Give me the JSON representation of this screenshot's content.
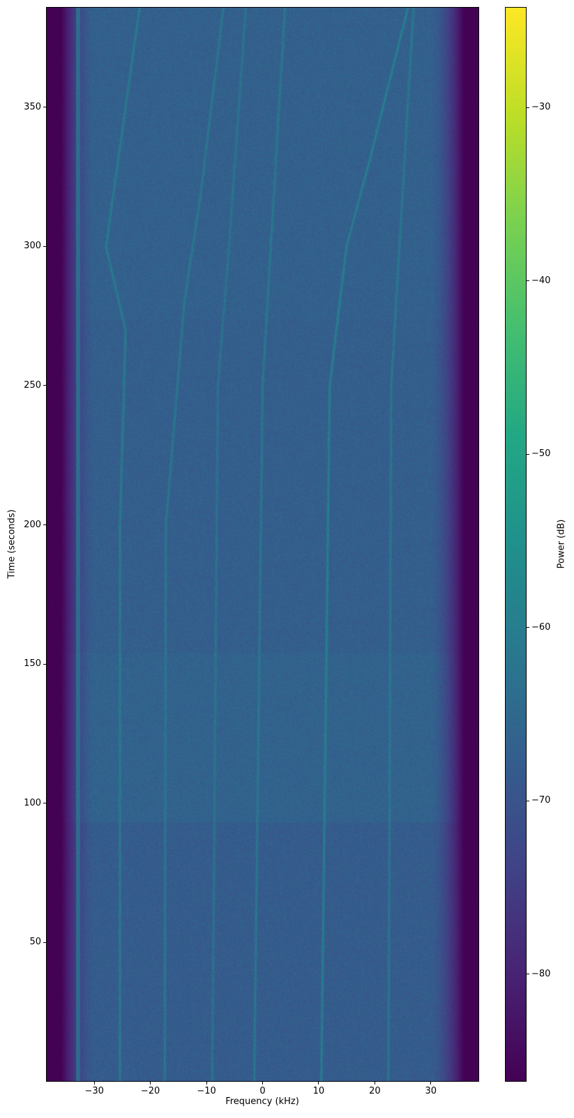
{
  "chart_data": {
    "type": "heatmap",
    "title": "",
    "xlabel": "Frequency (kHz)",
    "ylabel": "Time (seconds)",
    "colorbar_label": "Power (dB)",
    "colormap": "viridis",
    "xlim": [
      -38.6,
      38.6
    ],
    "ylim": [
      0,
      386
    ],
    "clim": [
      -86.2,
      -24.2
    ],
    "xticks": [
      -30,
      -20,
      -10,
      0,
      10,
      20,
      30
    ],
    "xtick_labels": [
      "−30",
      "−20",
      "−10",
      "0",
      "10",
      "20",
      "30"
    ],
    "yticks": [
      50,
      100,
      150,
      200,
      250,
      300,
      350
    ],
    "ytick_labels": [
      "50",
      "100",
      "150",
      "200",
      "250",
      "300",
      "350"
    ],
    "cticks": [
      -80,
      -70,
      -60,
      -50,
      -40,
      -30
    ],
    "ctick_labels": [
      "−80",
      "−70",
      "−60",
      "−50",
      "−40",
      "−30"
    ],
    "grid": false,
    "noise_floor_db": -86,
    "passband_khz": [
      -30,
      30
    ],
    "band_edge_khz": [
      -36,
      36
    ],
    "background_segments": [
      {
        "t": [
          0,
          93
        ],
        "db": -68
      },
      {
        "t": [
          93,
          154
        ],
        "db": -66.5
      },
      {
        "t": [
          154,
          274
        ],
        "db": -67.5
      },
      {
        "t": [
          274,
          386
        ],
        "db": -67
      }
    ],
    "signal_tracks": [
      {
        "db": -60,
        "points": [
          [
            0,
            -25.5
          ],
          [
            200,
            -25.5
          ],
          [
            270,
            -24.5
          ],
          [
            300,
            -28
          ],
          [
            386,
            -22
          ]
        ]
      },
      {
        "db": -61,
        "points": [
          [
            0,
            -17.5
          ],
          [
            200,
            -17.3
          ],
          [
            280,
            -14
          ],
          [
            320,
            -11
          ],
          [
            386,
            -7
          ]
        ]
      },
      {
        "db": -62,
        "points": [
          [
            0,
            -9
          ],
          [
            250,
            -8
          ],
          [
            300,
            -6
          ],
          [
            386,
            -3
          ]
        ]
      },
      {
        "db": -61,
        "points": [
          [
            0,
            -1.5
          ],
          [
            250,
            0
          ],
          [
            386,
            4
          ]
        ]
      },
      {
        "db": -59,
        "points": [
          [
            0,
            10.5
          ],
          [
            250,
            12
          ],
          [
            300,
            15
          ],
          [
            330,
            19
          ],
          [
            386,
            26
          ]
        ]
      },
      {
        "db": -61,
        "points": [
          [
            0,
            22.5
          ],
          [
            250,
            23
          ],
          [
            386,
            27
          ]
        ]
      },
      {
        "db": -63,
        "points": [
          [
            0,
            -33
          ],
          [
            386,
            -33
          ]
        ]
      }
    ]
  }
}
